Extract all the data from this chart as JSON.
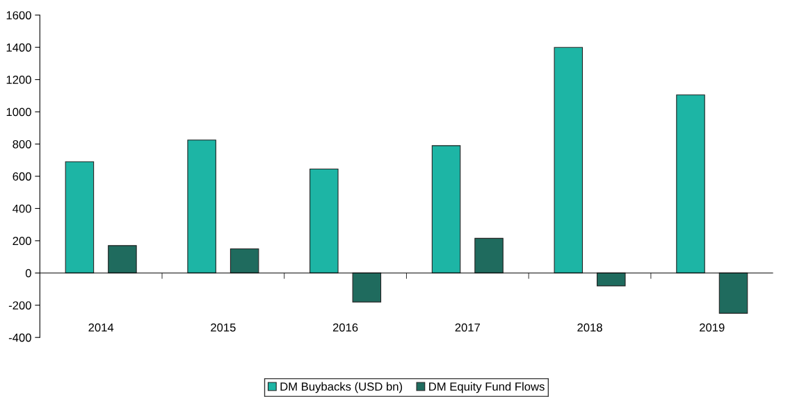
{
  "chart_data": {
    "type": "bar",
    "categories": [
      "2014",
      "2015",
      "2016",
      "2017",
      "2018",
      "2019"
    ],
    "series": [
      {
        "name": "DM Buybacks (USD bn)",
        "color": "#1db5a5",
        "values": [
          690,
          825,
          645,
          790,
          1400,
          1105
        ]
      },
      {
        "name": "DM Equity Fund Flows",
        "color": "#1f6b5e",
        "values": [
          170,
          150,
          -180,
          215,
          -80,
          -250
        ]
      }
    ],
    "ylim": [
      -400,
      1600
    ],
    "yticks": [
      -400,
      -200,
      0,
      200,
      400,
      600,
      800,
      1000,
      1200,
      1400,
      1600
    ],
    "ref_lines": [
      {
        "axis": "y",
        "value": 0,
        "color": "#000000"
      }
    ],
    "grid": false,
    "legend": "bottom"
  }
}
